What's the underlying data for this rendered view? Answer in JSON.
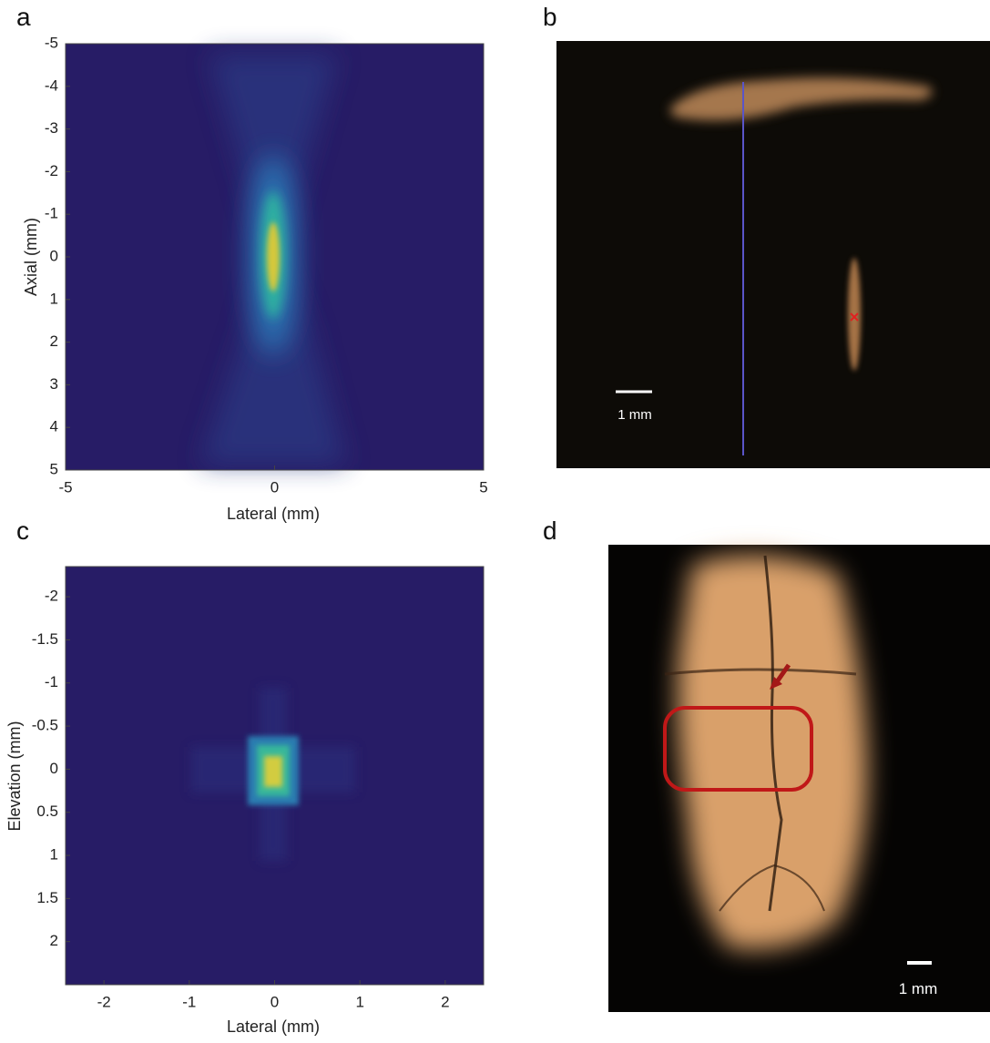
{
  "panels": [
    {
      "label": "a",
      "x_label": "Lateral (mm)",
      "y_label": "Axial (mm)",
      "xlim": [
        -5,
        5
      ],
      "ylim": [
        -5,
        5
      ],
      "xticks": [
        -5,
        0,
        5
      ],
      "yticks": [
        -5,
        -4,
        -3,
        -2,
        -1,
        0,
        1,
        2,
        3,
        4,
        5
      ]
    },
    {
      "label": "b",
      "scale_bar": "1 mm"
    },
    {
      "label": "c",
      "x_label": "Lateral (mm)",
      "y_label": "Elevation (mm)",
      "xlim": [
        -2.45,
        2.45
      ],
      "ylim": [
        -2.35,
        2.5
      ],
      "xticks": [
        -2,
        -1,
        0,
        1,
        2
      ],
      "yticks": [
        -2,
        -1.5,
        -1,
        -0.5,
        0,
        0.5,
        1,
        1.5,
        2
      ]
    },
    {
      "label": "d",
      "scale_bar": "1 mm"
    }
  ]
}
